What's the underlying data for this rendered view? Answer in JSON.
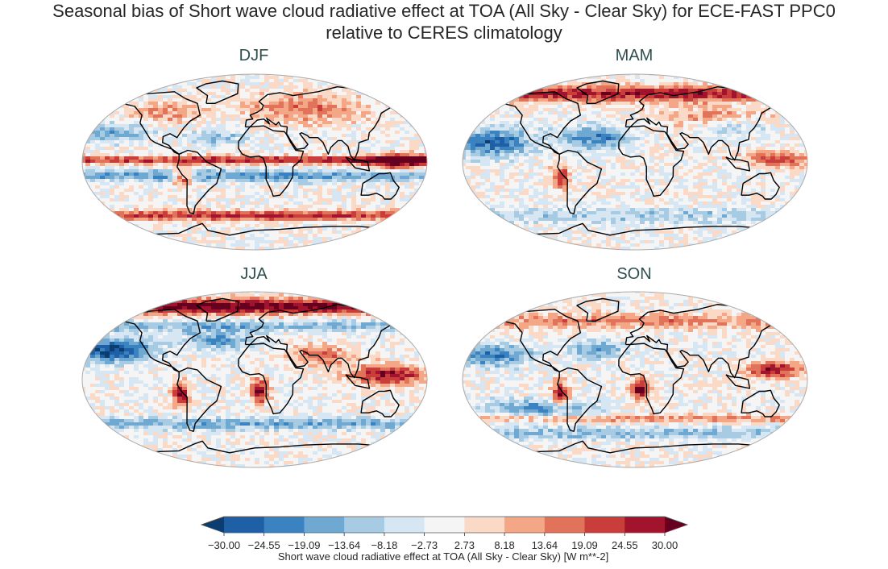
{
  "chart_data": {
    "type": "heatmap",
    "title_line1": "Seasonal bias of Short wave cloud radiative effect at TOA (All Sky - Clear Sky) for ECE-FAST PPC0",
    "title_line2": "relative to CERES climatology",
    "panels": [
      {
        "name": "DJF"
      },
      {
        "name": "MAM"
      },
      {
        "name": "JJA"
      },
      {
        "name": "SON"
      }
    ],
    "colorbar": {
      "levels": [
        -30.0,
        -24.55,
        -19.09,
        -13.64,
        -8.18,
        -2.73,
        2.73,
        8.18,
        13.64,
        19.09,
        24.55,
        30.0
      ],
      "tick_labels": [
        "−30.00",
        "−24.55",
        "−19.09",
        "−13.64",
        "−8.18",
        "−2.73",
        "2.73",
        "8.18",
        "13.64",
        "19.09",
        "24.55",
        "30.00"
      ],
      "colors": [
        "#1f5fa6",
        "#3b83c0",
        "#6fa9d2",
        "#a6cbe3",
        "#d6e6f2",
        "#f5f5f5",
        "#fad9c7",
        "#f4a786",
        "#e0735a",
        "#c93d3b",
        "#a2142e"
      ],
      "under_color": "#0b3d70",
      "over_color": "#67001f",
      "label": "Short wave cloud radiative effect at TOA (All Sky - Clear Sky) [W m**-2]"
    }
  }
}
